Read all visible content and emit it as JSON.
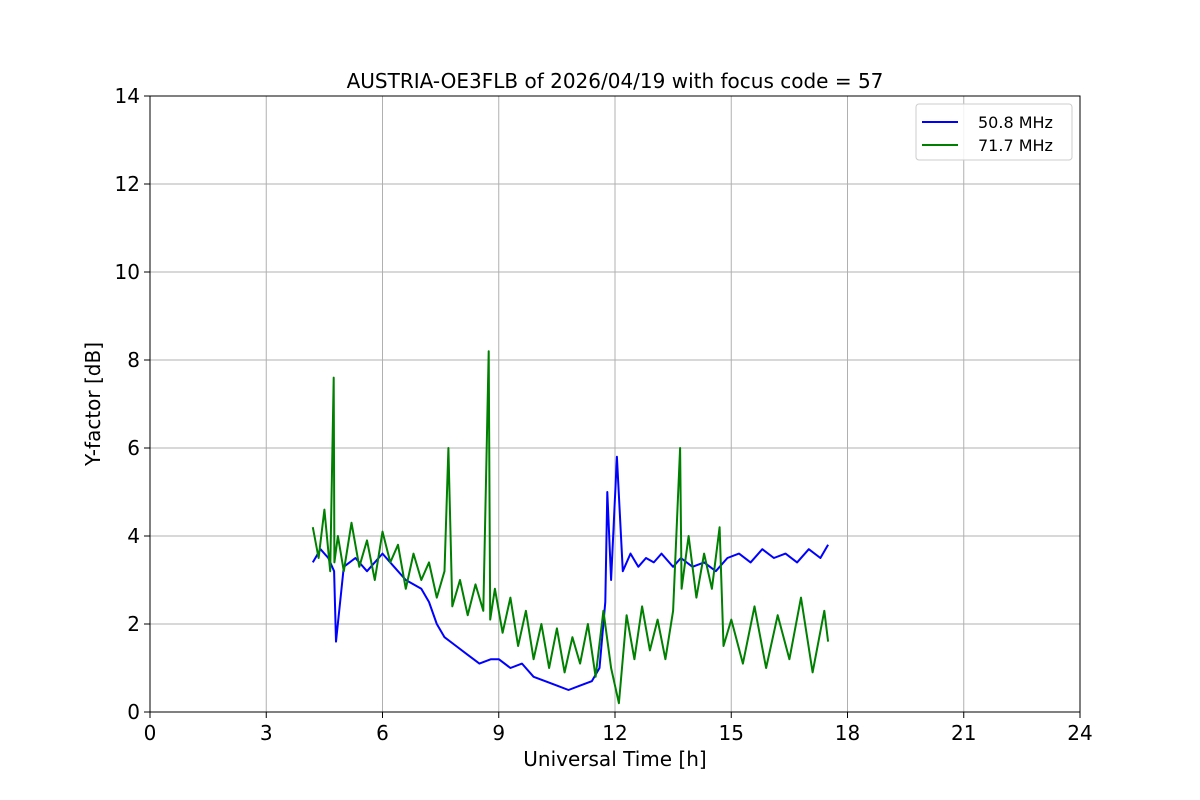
{
  "chart_data": {
    "type": "line",
    "title": "AUSTRIA-OE3FLB of 2026/04/19 with focus code = 57",
    "xlabel": "Universal Time [h]",
    "ylabel": "Y-factor [dB]",
    "xlim": [
      0,
      24
    ],
    "ylim": [
      0,
      14
    ],
    "xticks": [
      0,
      3,
      6,
      9,
      12,
      15,
      18,
      21,
      24
    ],
    "yticks": [
      0,
      2,
      4,
      6,
      8,
      10,
      12,
      14
    ],
    "grid": true,
    "legend_position": "top-right",
    "series": [
      {
        "name": "50.8 MHz",
        "color": "#0000ff",
        "x": [
          4.2,
          4.4,
          4.6,
          4.75,
          4.8,
          5.0,
          5.3,
          5.6,
          6.0,
          6.3,
          6.6,
          7.0,
          7.2,
          7.4,
          7.6,
          7.9,
          8.2,
          8.5,
          8.8,
          9.0,
          9.3,
          9.6,
          9.9,
          10.2,
          10.5,
          10.8,
          11.1,
          11.4,
          11.6,
          11.75,
          11.8,
          11.9,
          12.05,
          12.2,
          12.4,
          12.6,
          12.8,
          13.0,
          13.2,
          13.5,
          13.7,
          14.0,
          14.3,
          14.6,
          14.9,
          15.2,
          15.5,
          15.8,
          16.1,
          16.4,
          16.7,
          17.0,
          17.3,
          17.5
        ],
        "y": [
          3.4,
          3.7,
          3.5,
          3.2,
          1.6,
          3.3,
          3.5,
          3.2,
          3.6,
          3.3,
          3.0,
          2.8,
          2.5,
          2.0,
          1.7,
          1.5,
          1.3,
          1.1,
          1.2,
          1.2,
          1.0,
          1.1,
          0.8,
          0.7,
          0.6,
          0.5,
          0.6,
          0.7,
          1.0,
          2.5,
          5.0,
          3.0,
          5.8,
          3.2,
          3.6,
          3.3,
          3.5,
          3.4,
          3.6,
          3.3,
          3.5,
          3.3,
          3.4,
          3.2,
          3.5,
          3.6,
          3.4,
          3.7,
          3.5,
          3.6,
          3.4,
          3.7,
          3.5,
          3.8
        ]
      },
      {
        "name": "71.7 MHz",
        "color": "#008000",
        "x": [
          4.2,
          4.35,
          4.5,
          4.65,
          4.74,
          4.76,
          4.85,
          5.0,
          5.2,
          5.4,
          5.6,
          5.8,
          6.0,
          6.2,
          6.4,
          6.6,
          6.8,
          7.0,
          7.2,
          7.4,
          7.6,
          7.7,
          7.8,
          8.0,
          8.2,
          8.4,
          8.6,
          8.74,
          8.78,
          8.9,
          9.1,
          9.3,
          9.5,
          9.7,
          9.9,
          10.1,
          10.3,
          10.5,
          10.7,
          10.9,
          11.1,
          11.3,
          11.5,
          11.7,
          11.9,
          12.1,
          12.3,
          12.5,
          12.7,
          12.9,
          13.1,
          13.3,
          13.5,
          13.68,
          13.72,
          13.9,
          14.1,
          14.3,
          14.5,
          14.7,
          14.8,
          15.0,
          15.3,
          15.6,
          15.9,
          16.2,
          16.5,
          16.8,
          17.1,
          17.4,
          17.5
        ],
        "y": [
          4.2,
          3.5,
          4.6,
          3.2,
          7.6,
          3.4,
          4.0,
          3.2,
          4.3,
          3.3,
          3.9,
          3.0,
          4.1,
          3.4,
          3.8,
          2.8,
          3.6,
          3.0,
          3.4,
          2.6,
          3.2,
          6.0,
          2.4,
          3.0,
          2.2,
          2.9,
          2.3,
          8.2,
          2.1,
          2.8,
          1.8,
          2.6,
          1.5,
          2.3,
          1.2,
          2.0,
          1.0,
          1.9,
          0.9,
          1.7,
          1.1,
          2.0,
          0.8,
          2.3,
          1.0,
          0.2,
          2.2,
          1.2,
          2.4,
          1.4,
          2.1,
          1.2,
          2.3,
          6.0,
          2.8,
          4.0,
          2.6,
          3.6,
          2.8,
          4.2,
          1.5,
          2.1,
          1.1,
          2.4,
          1.0,
          2.2,
          1.2,
          2.6,
          0.9,
          2.3,
          1.6
        ]
      }
    ]
  }
}
